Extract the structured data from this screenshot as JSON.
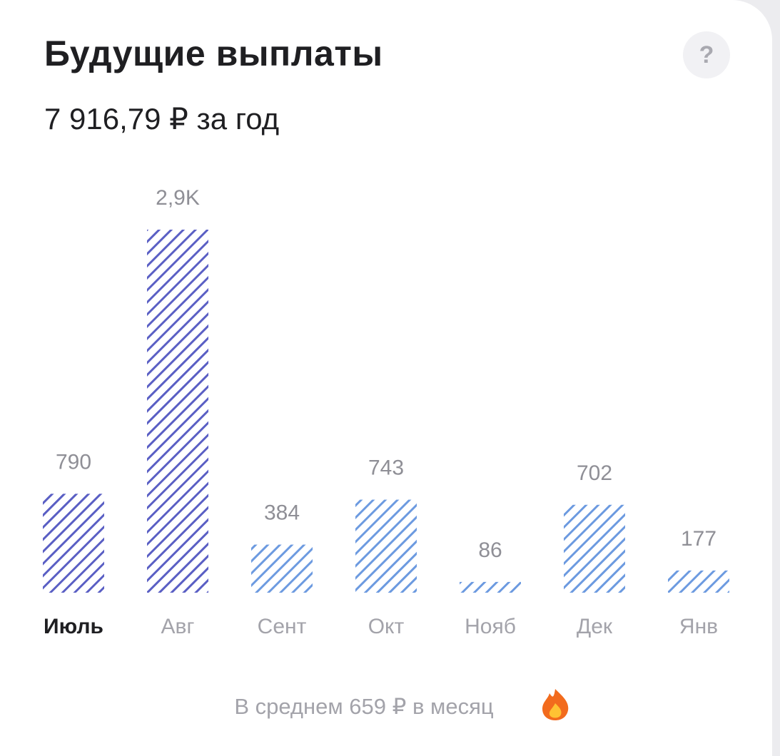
{
  "header": {
    "title": "Будущие выплаты",
    "subtitle": "7 916,79 ₽ за год",
    "help": "?"
  },
  "chart_data": {
    "type": "bar",
    "categories": [
      "Июль",
      "Авг",
      "Сент",
      "Окт",
      "Нояб",
      "Дек",
      "Янв"
    ],
    "values": [
      790,
      2900,
      384,
      743,
      86,
      702,
      177
    ],
    "value_labels": [
      "790",
      "2,9K",
      "384",
      "743",
      "86",
      "702",
      "177"
    ],
    "colors": [
      "#5a5fc4",
      "#5a5fc4",
      "#6c9ae0",
      "#6c9ae0",
      "#6c9ae0",
      "#6c9ae0",
      "#6c9ae0"
    ],
    "selected_index": 0
  },
  "footer": {
    "text": "В среднем 659 ₽ в месяц"
  }
}
